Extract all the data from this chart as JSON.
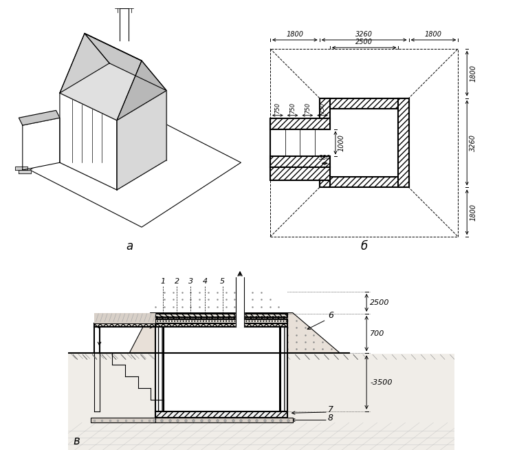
{
  "bg_color": "#ffffff",
  "line_color": "#000000",
  "label_a": "a",
  "label_b": "б",
  "label_v": "в"
}
